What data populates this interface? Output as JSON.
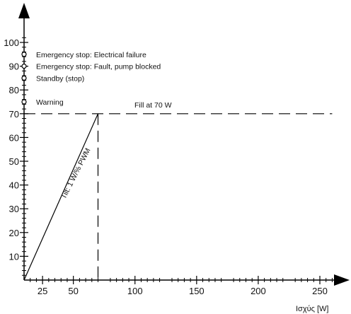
{
  "chart_data": {
    "type": "line",
    "title": "",
    "xlabel": "Ισχύς [W]",
    "ylabel": "",
    "xlim": [
      10,
      265
    ],
    "ylim": [
      0,
      107
    ],
    "x_ticks": [
      25,
      50,
      100,
      150,
      200,
      250
    ],
    "y_ticks": [
      10,
      20,
      30,
      40,
      50,
      60,
      70,
      80,
      90,
      100
    ],
    "series": [
      {
        "style": "solid",
        "points": [
          [
            10,
            0
          ],
          [
            70,
            70
          ]
        ]
      },
      {
        "style": "dashed",
        "points": [
          [
            10,
            70
          ],
          [
            260,
            70
          ]
        ]
      },
      {
        "style": "dashed",
        "points": [
          [
            70,
            70
          ],
          [
            70,
            0
          ]
        ]
      }
    ],
    "markers": [
      {
        "y": 95,
        "label": "Emergency stop: Electrical failure"
      },
      {
        "y": 90,
        "label": "Emergency stop: Fault, pump blocked"
      },
      {
        "y": 85,
        "label": "Standby (stop)"
      },
      {
        "y": 75,
        "label": "Warning"
      }
    ],
    "annotations": {
      "fill_label": "Fill at 70 W",
      "slope_label": "Tilt: 1 W/% PWM"
    }
  }
}
